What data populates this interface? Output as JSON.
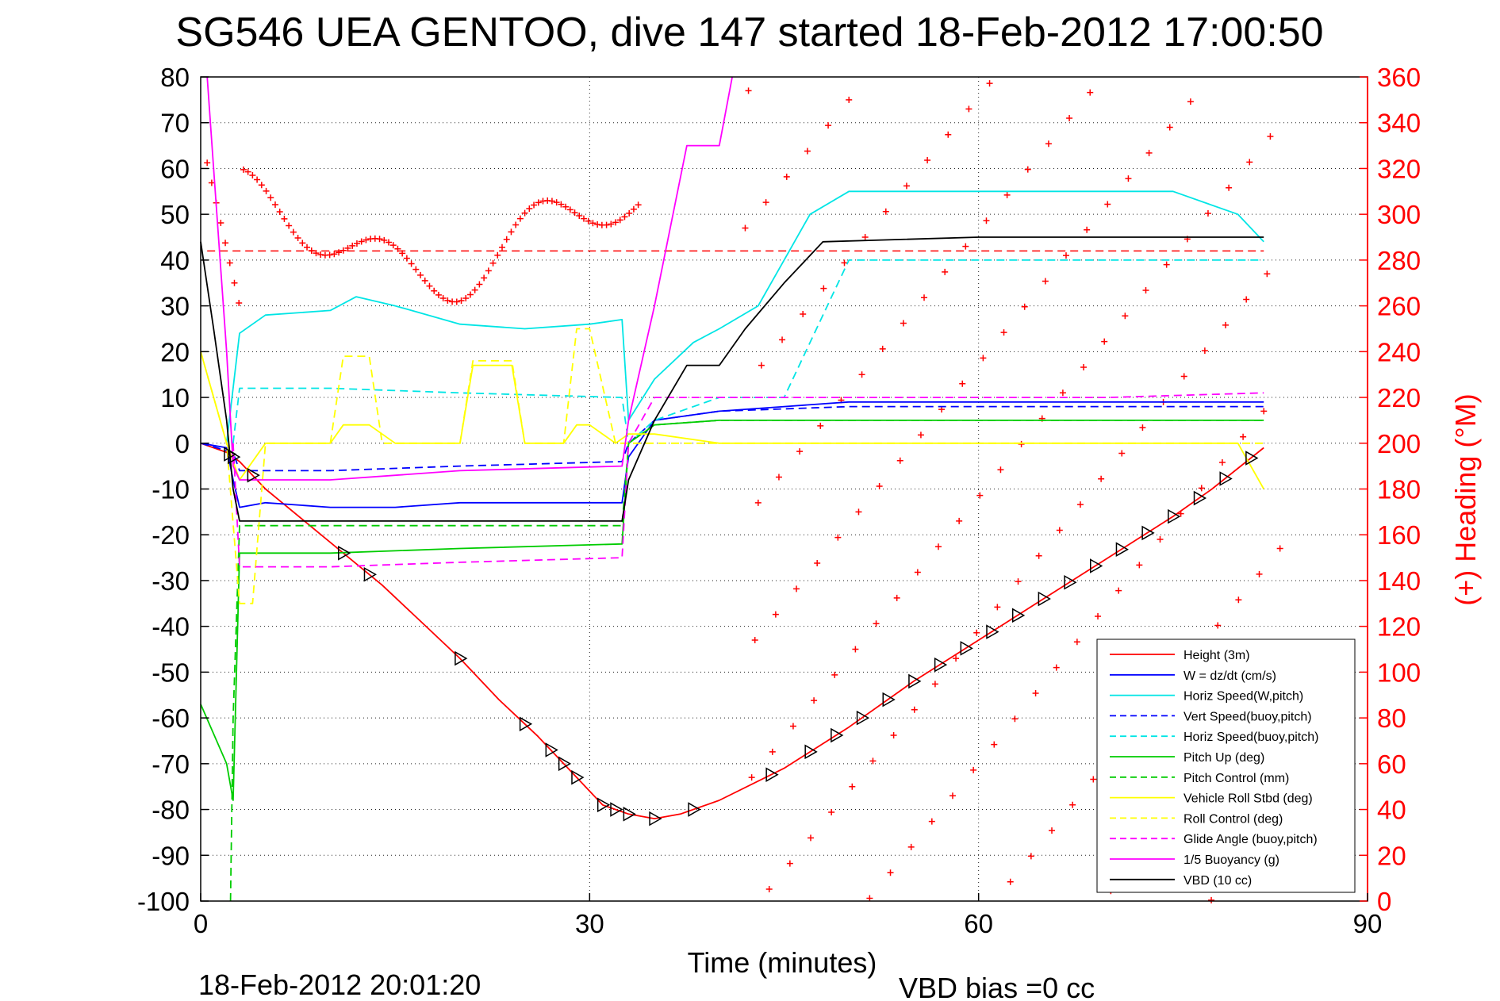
{
  "chart_data": {
    "type": "line",
    "title": "SG546 UEA GENTOO, dive 147 started 18-Feb-2012 17:00:50",
    "xlabel": "Time (minutes)",
    "ylabel": "",
    "ylabel_right": "(+) Heading (°M)",
    "xlim": [
      0,
      90
    ],
    "ylim": [
      -100,
      80
    ],
    "ylim_right": [
      0,
      360
    ],
    "x_ticks": [
      "0",
      "30",
      "60",
      "90"
    ],
    "y_ticks_left": [
      "80",
      "70",
      "60",
      "50",
      "40",
      "30",
      "20",
      "10",
      "0",
      "-10",
      "-20",
      "-30",
      "-40",
      "-50",
      "-60",
      "-70",
      "-80",
      "-90",
      "-100"
    ],
    "y_ticks_right": [
      "360",
      "340",
      "320",
      "300",
      "280",
      "260",
      "240",
      "220",
      "200",
      "180",
      "160",
      "140",
      "120",
      "100",
      "80",
      "60",
      "40",
      "20",
      "0"
    ],
    "grid": true,
    "legend_position": "bottom-right",
    "footer_left": "18-Feb-2012 20:01:20",
    "footer_right": "VBD bias =0 cc",
    "heading_reference": 284,
    "series": [
      {
        "name": "Height (3m)",
        "color": "#ff0000",
        "style": "solid",
        "x": [
          0,
          2,
          3,
          5,
          8,
          11,
          14,
          17,
          20,
          23,
          26,
          29,
          31,
          33,
          35,
          37,
          40,
          45,
          50,
          55,
          60,
          65,
          70,
          75,
          78,
          82
        ],
        "y": [
          0,
          -2,
          -4,
          -10,
          -17,
          -24,
          -31,
          -39,
          -47,
          -56,
          -64,
          -73,
          -79,
          -81,
          -82,
          -81,
          -78,
          -71,
          -62,
          -52,
          -43,
          -34,
          -25,
          -16,
          -10,
          -1
        ]
      },
      {
        "name": "W = dz/dt (cm/s)",
        "color": "#0000ff",
        "style": "solid",
        "x": [
          0,
          2,
          2.5,
          3,
          5,
          10,
          15,
          20,
          25,
          30,
          32.5,
          33,
          35,
          40,
          45,
          50,
          55,
          60,
          65,
          70,
          75,
          80,
          82
        ],
        "y": [
          0,
          -1,
          -8,
          -14,
          -13,
          -14,
          -14,
          -13,
          -13,
          -13,
          -13,
          -3,
          5,
          7,
          8,
          9,
          9,
          9,
          9,
          9,
          9,
          9,
          9
        ]
      },
      {
        "name": "Horiz Speed(W,pitch)",
        "color": "#00e5e5",
        "style": "solid",
        "x": [
          2,
          3,
          5,
          10,
          12,
          15,
          20,
          25,
          30,
          32.5,
          33,
          35,
          38,
          40,
          43,
          45,
          47,
          50,
          55,
          60,
          65,
          70,
          75,
          80,
          82
        ],
        "y": [
          0,
          24,
          28,
          29,
          32,
          30,
          26,
          25,
          26,
          27,
          5,
          14,
          22,
          25,
          30,
          40,
          50,
          55,
          55,
          55,
          55,
          55,
          55,
          50,
          44
        ]
      },
      {
        "name": "Vert Speed(buoy,pitch)",
        "color": "#0000ff",
        "style": "dashed",
        "x": [
          0,
          2.5,
          3,
          10,
          20,
          32.5,
          33,
          35,
          40,
          50,
          60,
          70,
          82
        ],
        "y": [
          0,
          -2,
          -6,
          -6,
          -5,
          -4,
          0,
          5,
          7,
          8,
          8,
          8,
          8
        ]
      },
      {
        "name": "Horiz Speed(buoy,pitch)",
        "color": "#00e5e5",
        "style": "dashed",
        "x": [
          2.5,
          3,
          10,
          20,
          32.5,
          33,
          35,
          40,
          45,
          50,
          55,
          60,
          65,
          70,
          75,
          82
        ],
        "y": [
          0,
          12,
          12,
          11,
          10,
          0,
          5,
          10,
          10,
          40,
          40,
          40,
          40,
          40,
          40,
          40
        ]
      },
      {
        "name": "Pitch Up (deg)",
        "color": "#00cc00",
        "style": "solid",
        "x": [
          0,
          2,
          2.5,
          3,
          10,
          20,
          32.5,
          33,
          35,
          40,
          50,
          60,
          70,
          82
        ],
        "y": [
          -57,
          -70,
          -78,
          -24,
          -24,
          -23,
          -22,
          0,
          4,
          5,
          5,
          5,
          5,
          5
        ]
      },
      {
        "name": "Pitch Control (mm)",
        "color": "#00cc00",
        "style": "dashed",
        "x": [
          2.3,
          2.5,
          3,
          10,
          20,
          32.5,
          33,
          35,
          40,
          50,
          60,
          70,
          82
        ],
        "y": [
          -100,
          -60,
          -18,
          -18,
          -18,
          -18,
          0,
          4,
          5,
          5,
          5,
          5,
          5
        ]
      },
      {
        "name": "Vehicle Roll Stbd (deg)",
        "color": "#ffff00",
        "style": "solid",
        "x": [
          0,
          2,
          3,
          5,
          10,
          11,
          13,
          15,
          20,
          21,
          24,
          25,
          28,
          29,
          30,
          32,
          33,
          35,
          40,
          50,
          60,
          70,
          80,
          82
        ],
        "y": [
          20,
          0,
          -8,
          0,
          0,
          4,
          4,
          0,
          0,
          17,
          17,
          0,
          0,
          4,
          4,
          0,
          2,
          2,
          0,
          0,
          0,
          0,
          0,
          -10
        ]
      },
      {
        "name": "Roll Control (deg)",
        "color": "#ffff00",
        "style": "dashed",
        "x": [
          0,
          2,
          3,
          4,
          5,
          10,
          11,
          13,
          14,
          20,
          21,
          24,
          25,
          28,
          29,
          30,
          32,
          33,
          35,
          40,
          82
        ],
        "y": [
          20,
          0,
          -35,
          -35,
          0,
          0,
          19,
          19,
          0,
          0,
          18,
          18,
          0,
          0,
          25,
          25,
          0,
          0,
          0,
          0,
          0
        ]
      },
      {
        "name": "Glide Angle (buoy,pitch)",
        "color": "#ff00ff",
        "style": "dashed",
        "x": [
          2.5,
          3,
          10,
          20,
          32.5,
          33,
          35,
          40,
          50,
          60,
          70,
          82
        ],
        "y": [
          0,
          -27,
          -27,
          -26,
          -25,
          0,
          10,
          10,
          10,
          10,
          10,
          11
        ]
      },
      {
        "name": "1/5 Buoyancy (g)",
        "color": "#ff00ff",
        "style": "solid",
        "x": [
          0.5,
          1,
          2,
          2.5,
          3,
          10,
          20,
          32.5,
          33,
          35,
          37.5,
          40,
          41
        ],
        "y": [
          80,
          60,
          20,
          -5,
          -8,
          -8,
          -6,
          -5,
          5,
          30,
          65,
          65,
          80
        ]
      },
      {
        "name": "VBD (10 cc)",
        "color": "#000000",
        "style": "solid",
        "x": [
          0,
          1,
          2,
          2.5,
          3,
          10,
          20,
          32.5,
          33,
          35,
          37.5,
          40,
          42,
          45,
          48,
          60,
          70,
          82
        ],
        "y": [
          44,
          25,
          5,
          -10,
          -17,
          -17,
          -17,
          -17,
          -8,
          5,
          17,
          17,
          25,
          35,
          44,
          45,
          45,
          45
        ]
      }
    ]
  },
  "legend": {
    "entries": [
      "Height (3m)",
      "W = dz/dt (cm/s)",
      "Horiz Speed(W,pitch)",
      "Vert Speed(buoy,pitch)",
      "Horiz Speed(buoy,pitch)",
      "Pitch Up (deg)",
      "Pitch Control (mm)",
      "Vehicle Roll Stbd (deg)",
      "Roll Control (deg)",
      "Glide Angle (buoy,pitch)",
      "1/5 Buoyancy (g)",
      "VBD (10 cc)"
    ]
  }
}
